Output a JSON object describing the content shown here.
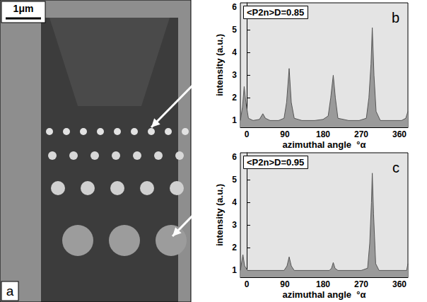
{
  "image": {
    "scale_bar": "1μm",
    "label": "a"
  },
  "chart_data": [
    {
      "type": "line",
      "panel": "b",
      "annotation": "<P2n>D=0.85",
      "xlabel": "azimuthal angle  °α",
      "ylabel": "intensity (a.u.)",
      "color": "#9a9a9a",
      "grid": false,
      "xlim": [
        -15,
        380
      ],
      "xticks": [
        0,
        90,
        180,
        270,
        360
      ],
      "ylim": [
        0.7,
        6.2
      ],
      "yticks": [
        1,
        2,
        3,
        4,
        5,
        6
      ],
      "x": [
        -15,
        -10,
        -6,
        -2,
        4,
        15,
        30,
        38,
        44,
        55,
        75,
        88,
        94,
        100,
        105,
        112,
        130,
        160,
        180,
        192,
        198,
        204,
        209,
        215,
        240,
        265,
        282,
        288,
        293,
        296,
        300,
        305,
        315,
        340,
        365,
        375,
        380
      ],
      "values": [
        1.0,
        1.6,
        2.5,
        1.8,
        1.1,
        1.0,
        1.05,
        1.3,
        1.1,
        1.0,
        1.0,
        1.1,
        1.8,
        3.3,
        1.8,
        1.1,
        1.0,
        1.0,
        1.05,
        1.2,
        2.0,
        3.0,
        2.0,
        1.1,
        1.0,
        1.0,
        1.1,
        2.0,
        3.5,
        5.1,
        3.0,
        1.4,
        1.0,
        1.0,
        1.0,
        1.1,
        1.4
      ]
    },
    {
      "type": "line",
      "panel": "c",
      "annotation": "<P2n>D=0.95",
      "xlabel": "azimuthal angle  °α",
      "ylabel": "intensity (a.u.)",
      "color": "#9a9a9a",
      "grid": false,
      "xlim": [
        -15,
        380
      ],
      "xticks": [
        0,
        90,
        180,
        270,
        360
      ],
      "ylim": [
        0.7,
        6.2
      ],
      "yticks": [
        1,
        2,
        3,
        4,
        5,
        6
      ],
      "x": [
        -15,
        -9,
        -5,
        2,
        30,
        60,
        88,
        95,
        100,
        105,
        112,
        160,
        195,
        200,
        204,
        208,
        215,
        270,
        285,
        290,
        294,
        296,
        299,
        304,
        312,
        360,
        377,
        380
      ],
      "values": [
        1.0,
        1.7,
        1.2,
        1.0,
        1.0,
        1.0,
        1.0,
        1.2,
        1.6,
        1.2,
        1.0,
        1.0,
        1.0,
        1.1,
        1.35,
        1.1,
        1.0,
        1.0,
        1.1,
        2.2,
        4.0,
        5.3,
        3.5,
        1.3,
        1.0,
        1.0,
        1.0,
        1.3
      ]
    }
  ]
}
